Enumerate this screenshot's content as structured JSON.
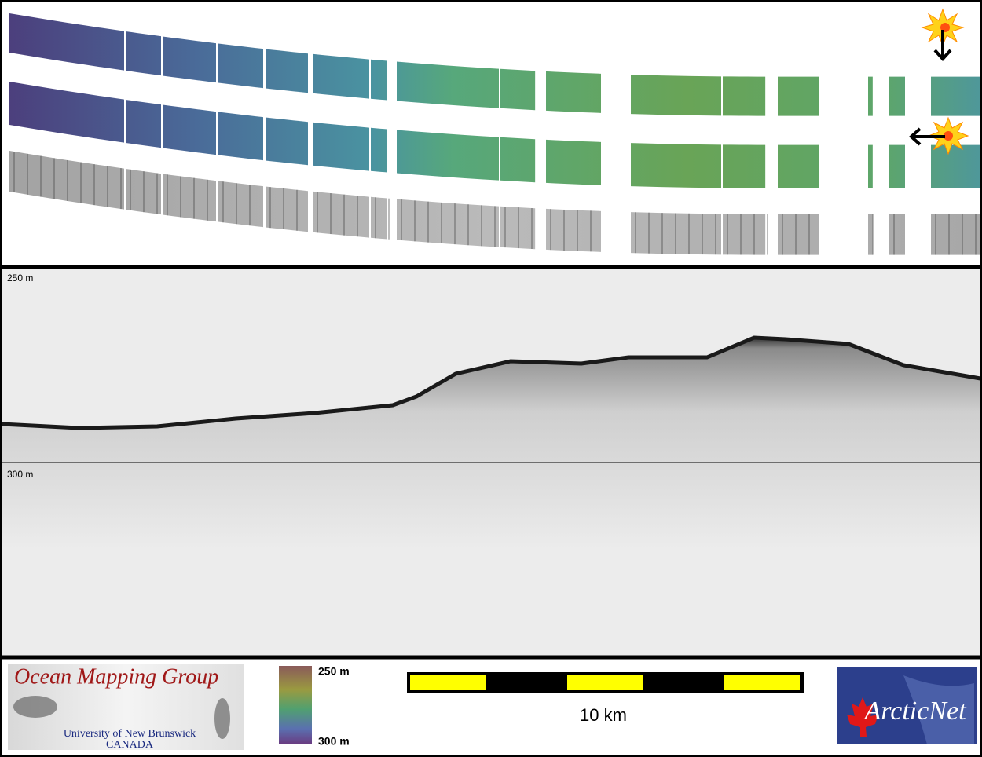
{
  "echogram": {
    "depth_labels": [
      "250 m",
      "300 m"
    ]
  },
  "logo": {
    "title": "Ocean Mapping Group",
    "university": "University of New Brunswick",
    "country": "CANADA"
  },
  "colorbar": {
    "top_label": "250 m",
    "bottom_label": "300 m"
  },
  "scale_bar": {
    "label": "10 km"
  },
  "partner_logo": {
    "label": "ArcticNet"
  }
}
